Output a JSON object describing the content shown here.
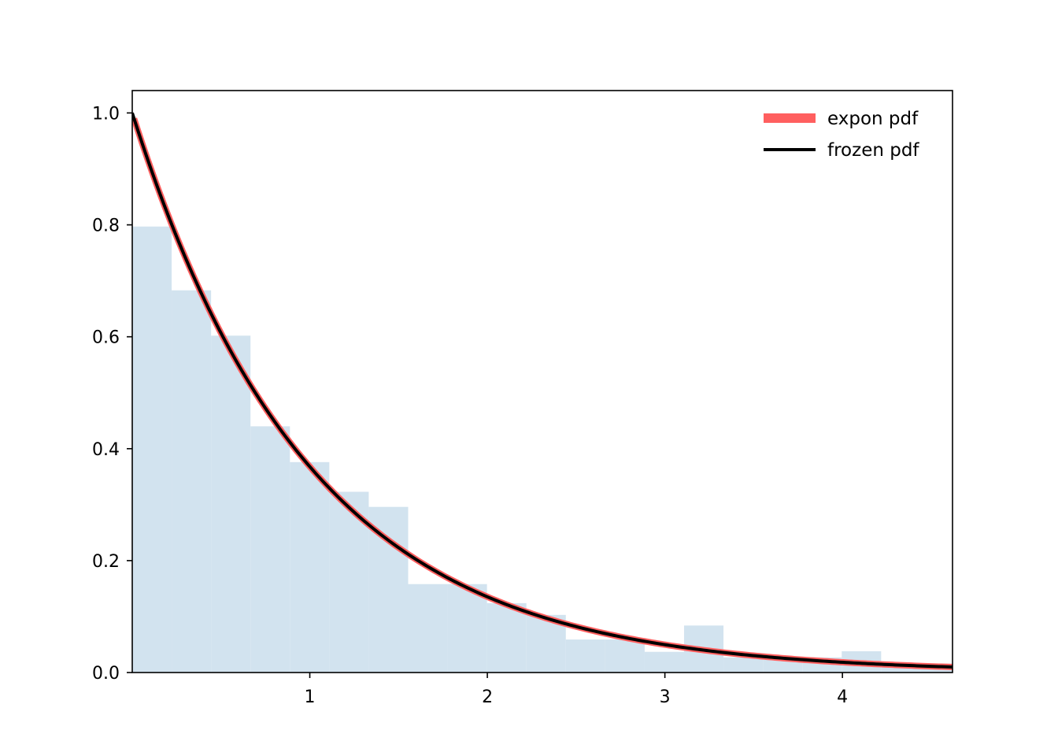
{
  "chart_data": {
    "type": "bar",
    "title": "",
    "xlabel": "",
    "ylabel": "",
    "xlim": [
      0,
      4.62
    ],
    "ylim": [
      0,
      1.04
    ],
    "xticks": [
      {
        "value": 1,
        "label": "1"
      },
      {
        "value": 2,
        "label": "2"
      },
      {
        "value": 3,
        "label": "3"
      },
      {
        "value": 4,
        "label": "4"
      }
    ],
    "yticks": [
      {
        "value": 0.0,
        "label": "0.0"
      },
      {
        "value": 0.2,
        "label": "0.2"
      },
      {
        "value": 0.4,
        "label": "0.4"
      },
      {
        "value": 0.6,
        "label": "0.6"
      },
      {
        "value": 0.8,
        "label": "0.8"
      },
      {
        "value": 1.0,
        "label": "1.0"
      }
    ],
    "histogram": {
      "color": "#d2e3ef",
      "bin_edges": [
        0,
        0.222,
        0.444,
        0.666,
        0.888,
        1.11,
        1.332,
        1.554,
        1.776,
        1.998,
        2.22,
        2.442,
        2.664,
        2.886,
        3.108,
        3.33,
        3.552,
        3.774,
        3.996,
        4.218,
        4.44,
        4.662
      ],
      "densities": [
        0.797,
        0.683,
        0.602,
        0.44,
        0.376,
        0.323,
        0.296,
        0.158,
        0.158,
        0.124,
        0.103,
        0.059,
        0.059,
        0.037,
        0.084,
        0.027,
        0.027,
        0.027,
        0.038,
        0.016,
        0.016
      ]
    },
    "series": [
      {
        "name": "expon pdf",
        "type": "line",
        "function": "exp(-x)",
        "color": "#ff5f5f",
        "x_range": [
          0.01,
          4.62
        ]
      },
      {
        "name": "frozen pdf",
        "type": "line",
        "function": "exp(-x)",
        "color": "#000000",
        "x_range": [
          0,
          4.62
        ]
      }
    ],
    "legend": {
      "position": "top-right",
      "frame": false
    },
    "grid": false
  }
}
